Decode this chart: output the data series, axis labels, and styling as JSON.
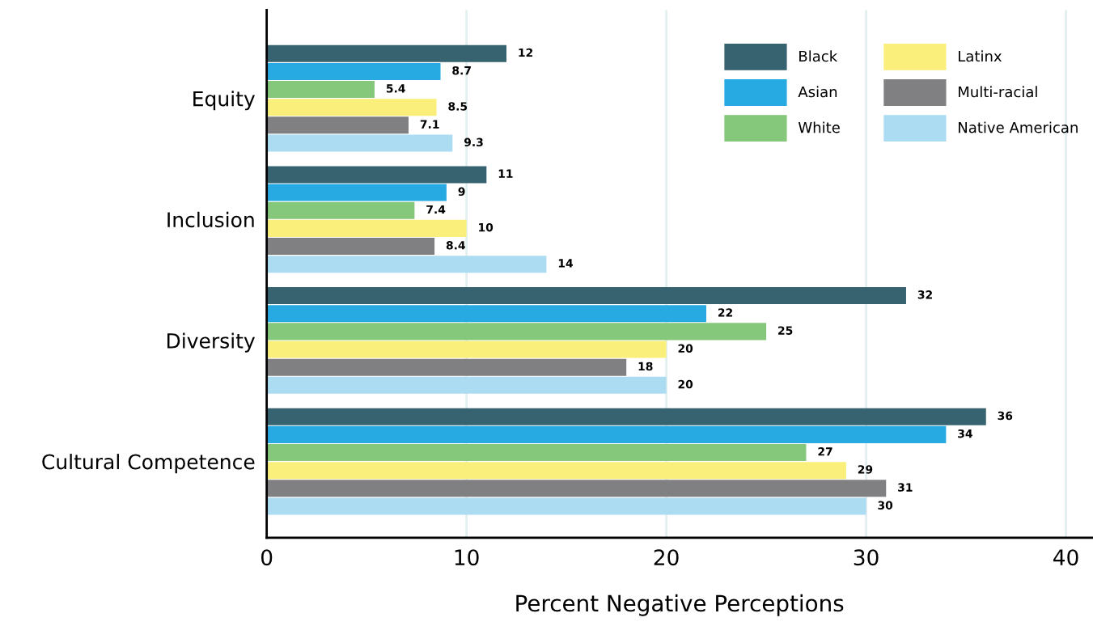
{
  "chart_data": {
    "type": "bar",
    "orientation": "horizontal",
    "xlabel": "Percent Negative Perceptions",
    "categories": [
      "Equity",
      "Inclusion",
      "Diversity",
      "Cultural Competence"
    ],
    "series": [
      {
        "name": "Black",
        "color": "#37626f",
        "values": [
          12,
          11,
          32,
          36
        ]
      },
      {
        "name": "Asian",
        "color": "#27a9e1",
        "values": [
          8.7,
          9,
          22,
          34
        ]
      },
      {
        "name": "White",
        "color": "#85c77b",
        "values": [
          5.4,
          7.4,
          25,
          27
        ]
      },
      {
        "name": "Latinx",
        "color": "#f9ef7a",
        "values": [
          8.5,
          10,
          20,
          29
        ]
      },
      {
        "name": "Multi-racial",
        "color": "#808083",
        "values": [
          7.1,
          8.4,
          18,
          31
        ]
      },
      {
        "name": "Native American",
        "color": "#acdcf2",
        "values": [
          9.3,
          14,
          20,
          30
        ]
      }
    ],
    "xlim": [
      0,
      41.3
    ],
    "xticks": [
      0,
      10,
      20,
      30,
      40
    ],
    "grid": "x",
    "legend": "top right",
    "data_labels": true
  }
}
